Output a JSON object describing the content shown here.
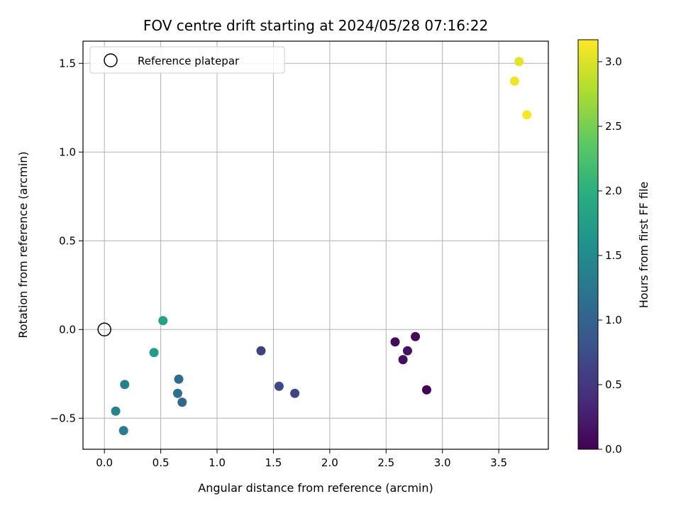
{
  "chart_data": {
    "type": "scatter",
    "title": "FOV centre drift starting at 2024/05/28 07:16:22",
    "xlabel": "Angular distance from reference (arcmin)",
    "ylabel": "Rotation from reference (arcmin)",
    "xlim": [
      -0.19,
      3.94
    ],
    "ylim": [
      -0.675,
      1.625
    ],
    "xticks": [
      0.0,
      0.5,
      1.0,
      1.5,
      2.0,
      2.5,
      3.0,
      3.5
    ],
    "xtick_labels": [
      "0.0",
      "0.5",
      "1.0",
      "1.5",
      "2.0",
      "2.5",
      "3.0",
      "3.5"
    ],
    "yticks": [
      -0.5,
      0.0,
      0.5,
      1.0,
      1.5
    ],
    "ytick_labels": [
      "−0.5",
      "0.0",
      "0.5",
      "1.0",
      "1.5"
    ],
    "grid": true,
    "legend": {
      "placement": "top-left",
      "entries": [
        {
          "label": "Reference platepar",
          "marker": "open-circle",
          "x": 0.0,
          "y": 0.0
        }
      ]
    },
    "colorbar": {
      "label": "Hours from first FF file",
      "colormap": "viridis",
      "range": [
        0.0,
        3.17
      ],
      "ticks": [
        0.0,
        0.5,
        1.0,
        1.5,
        2.0,
        2.5,
        3.0
      ],
      "tick_labels": [
        "0.0",
        "0.5",
        "1.0",
        "1.5",
        "2.0",
        "2.5",
        "3.0"
      ]
    },
    "points": [
      {
        "x": 2.86,
        "y": -0.34,
        "c": 0.0
      },
      {
        "x": 2.76,
        "y": -0.04,
        "c": 0.05
      },
      {
        "x": 2.58,
        "y": -0.07,
        "c": 0.1
      },
      {
        "x": 2.69,
        "y": -0.12,
        "c": 0.15
      },
      {
        "x": 2.65,
        "y": -0.17,
        "c": 0.12
      },
      {
        "x": 1.39,
        "y": -0.12,
        "c": 0.6
      },
      {
        "x": 1.55,
        "y": -0.32,
        "c": 0.7
      },
      {
        "x": 1.69,
        "y": -0.36,
        "c": 0.65
      },
      {
        "x": 0.66,
        "y": -0.28,
        "c": 1.1
      },
      {
        "x": 0.65,
        "y": -0.36,
        "c": 1.15
      },
      {
        "x": 0.69,
        "y": -0.41,
        "c": 1.05
      },
      {
        "x": 0.18,
        "y": -0.31,
        "c": 1.35
      },
      {
        "x": 0.1,
        "y": -0.46,
        "c": 1.4
      },
      {
        "x": 0.17,
        "y": -0.57,
        "c": 1.3
      },
      {
        "x": 0.44,
        "y": -0.13,
        "c": 1.75
      },
      {
        "x": 0.52,
        "y": 0.05,
        "c": 1.8
      },
      {
        "x": 3.68,
        "y": 1.51,
        "c": 3.05
      },
      {
        "x": 3.64,
        "y": 1.4,
        "c": 3.1
      },
      {
        "x": 3.75,
        "y": 1.21,
        "c": 3.15
      }
    ]
  }
}
